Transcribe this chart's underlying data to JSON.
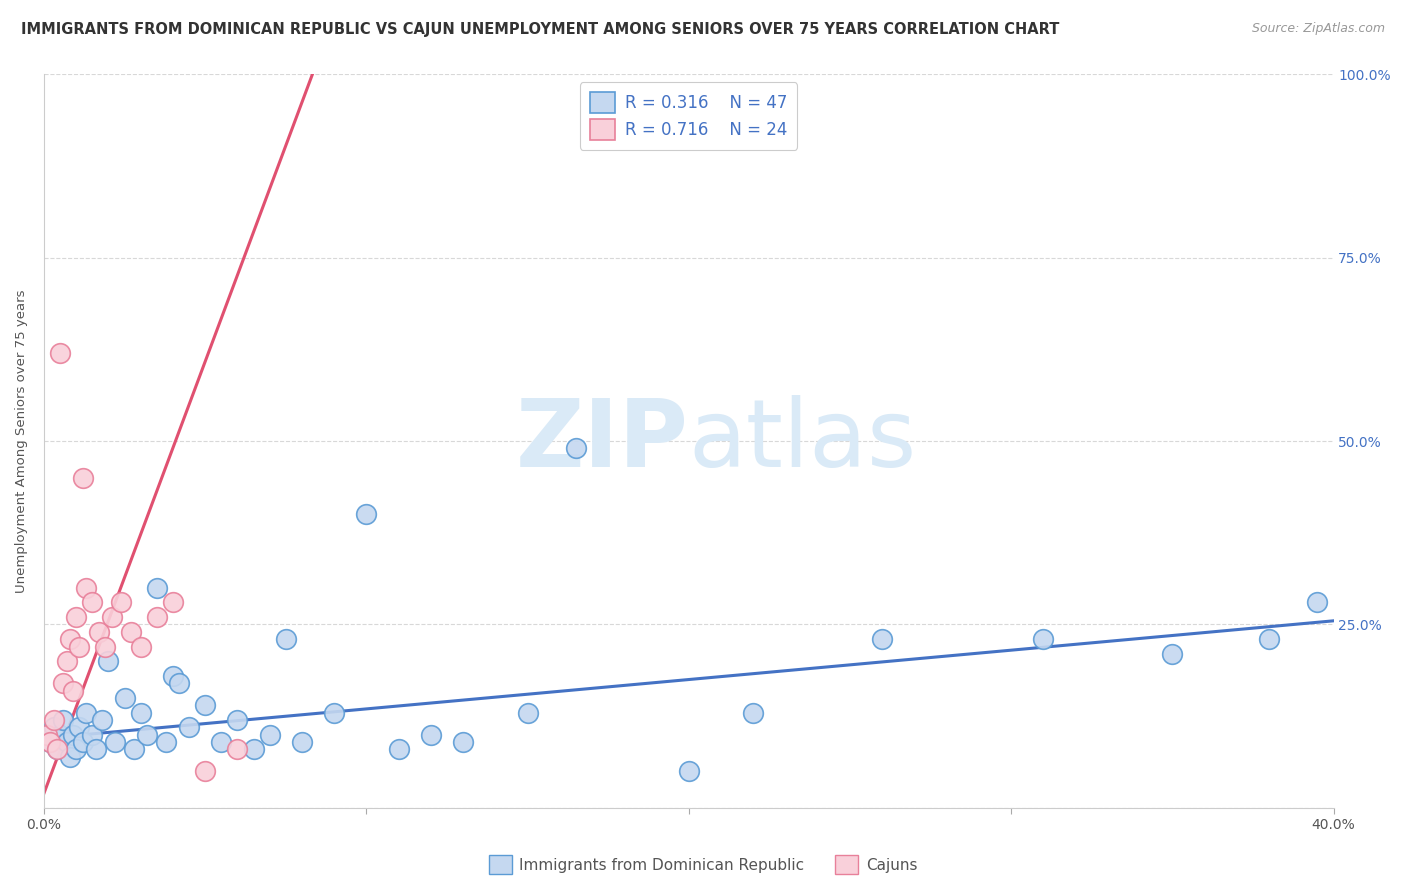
{
  "title": "IMMIGRANTS FROM DOMINICAN REPUBLIC VS CAJUN UNEMPLOYMENT AMONG SENIORS OVER 75 YEARS CORRELATION CHART",
  "source": "Source: ZipAtlas.com",
  "ylabel": "Unemployment Among Seniors over 75 years",
  "xlim": [
    0.0,
    0.4
  ],
  "ylim": [
    0.0,
    1.0
  ],
  "x_tick_positions": [
    0.0,
    0.1,
    0.2,
    0.3,
    0.4
  ],
  "x_tick_labels": [
    "0.0%",
    "",
    "",
    "",
    "40.0%"
  ],
  "y_tick_positions": [
    0.0,
    0.25,
    0.5,
    0.75,
    1.0
  ],
  "y_tick_labels_right": [
    "",
    "25.0%",
    "50.0%",
    "75.0%",
    "100.0%"
  ],
  "blue_scatter_x": [
    0.002,
    0.003,
    0.004,
    0.005,
    0.006,
    0.007,
    0.008,
    0.009,
    0.01,
    0.011,
    0.012,
    0.013,
    0.015,
    0.016,
    0.018,
    0.02,
    0.022,
    0.025,
    0.028,
    0.03,
    0.032,
    0.035,
    0.038,
    0.04,
    0.042,
    0.045,
    0.05,
    0.055,
    0.06,
    0.065,
    0.07,
    0.075,
    0.08,
    0.09,
    0.1,
    0.11,
    0.12,
    0.13,
    0.15,
    0.165,
    0.2,
    0.22,
    0.26,
    0.31,
    0.35,
    0.38,
    0.395
  ],
  "blue_scatter_y": [
    0.09,
    0.11,
    0.08,
    0.1,
    0.12,
    0.09,
    0.07,
    0.1,
    0.08,
    0.11,
    0.09,
    0.13,
    0.1,
    0.08,
    0.12,
    0.2,
    0.09,
    0.15,
    0.08,
    0.13,
    0.1,
    0.3,
    0.09,
    0.18,
    0.17,
    0.11,
    0.14,
    0.09,
    0.12,
    0.08,
    0.1,
    0.23,
    0.09,
    0.13,
    0.4,
    0.08,
    0.1,
    0.09,
    0.13,
    0.49,
    0.05,
    0.13,
    0.23,
    0.23,
    0.21,
    0.23,
    0.28
  ],
  "pink_scatter_x": [
    0.001,
    0.002,
    0.003,
    0.004,
    0.005,
    0.006,
    0.007,
    0.008,
    0.009,
    0.01,
    0.011,
    0.012,
    0.013,
    0.015,
    0.017,
    0.019,
    0.021,
    0.024,
    0.027,
    0.03,
    0.035,
    0.04,
    0.05,
    0.06
  ],
  "pink_scatter_y": [
    0.1,
    0.09,
    0.12,
    0.08,
    0.62,
    0.17,
    0.2,
    0.23,
    0.16,
    0.26,
    0.22,
    0.45,
    0.3,
    0.28,
    0.24,
    0.22,
    0.26,
    0.28,
    0.24,
    0.22,
    0.26,
    0.28,
    0.05,
    0.08
  ],
  "blue_line_x": [
    0.0,
    0.4
  ],
  "blue_line_y": [
    0.095,
    0.255
  ],
  "pink_line_x": [
    0.0,
    0.085
  ],
  "pink_line_y": [
    0.02,
    1.02
  ],
  "R_blue": "0.316",
  "N_blue": "47",
  "R_pink": "0.716",
  "N_pink": "24",
  "blue_color": "#c5d8f0",
  "blue_edge_color": "#5b9bd5",
  "blue_line_color": "#4472c4",
  "pink_color": "#f9d0da",
  "pink_edge_color": "#e8809a",
  "pink_line_color": "#e05070",
  "title_fontsize": 10.5,
  "axis_label_fontsize": 9.5,
  "watermark_zip": "ZIP",
  "watermark_atlas": "atlas",
  "watermark_color": "#daeaf7",
  "background_color": "#ffffff",
  "grid_color": "#d8d8d8",
  "right_axis_color": "#4472c4",
  "legend_text_color": "#4472c4",
  "bottom_legend_text_color": "#555555"
}
